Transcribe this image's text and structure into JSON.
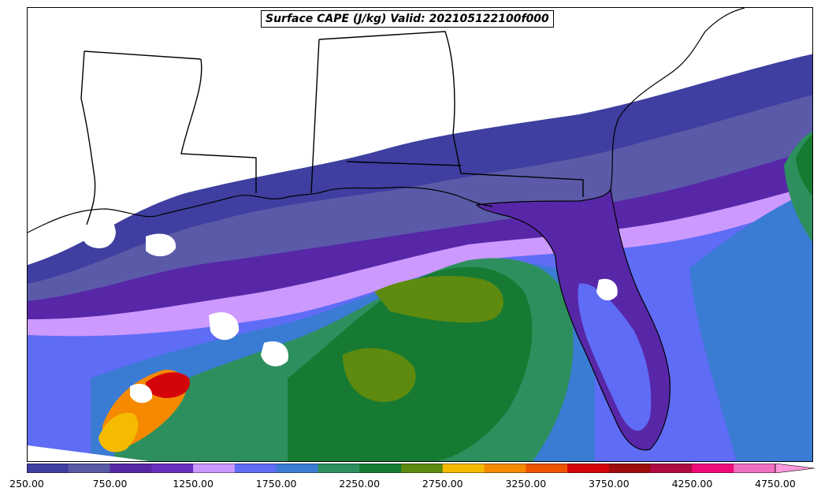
{
  "map": {
    "title": "Surface CAPE (J/kg) Valid: 202105122100f000"
  },
  "colorbar": {
    "colors": [
      "#3e3fa0",
      "#5a5aa8",
      "#5727a8",
      "#6a2fc0",
      "#cc99ff",
      "#5f6cf5",
      "#3a7bd4",
      "#2e8f5e",
      "#177a32",
      "#5e8a10",
      "#f5bb00",
      "#f58a00",
      "#ee5500",
      "#d4040b",
      "#a00c0c",
      "#b00a44",
      "#f00a7a",
      "#f06ec0"
    ],
    "extend_color": "#ff99dd",
    "tick_labels": [
      "250.00",
      "750.00",
      "1250.00",
      "1750.00",
      "2250.00",
      "2750.00",
      "3250.00",
      "3750.00",
      "4250.00",
      "4750.00"
    ]
  }
}
